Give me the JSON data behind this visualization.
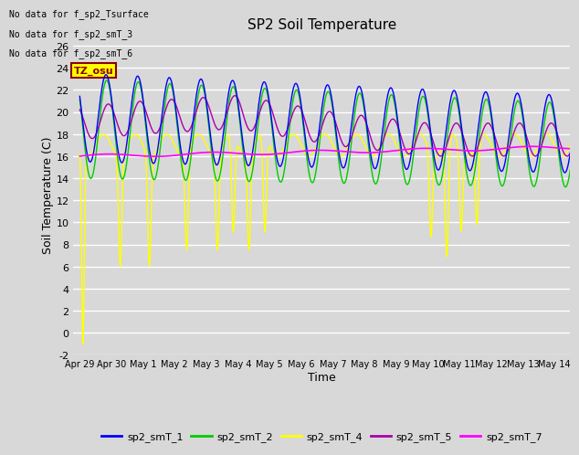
{
  "title": "SP2 Soil Temperature",
  "xlabel": "Time",
  "ylabel": "Soil Temperature (C)",
  "ylim": [
    -2,
    27
  ],
  "yticks": [
    -2,
    0,
    2,
    4,
    6,
    8,
    10,
    12,
    14,
    16,
    18,
    20,
    22,
    24,
    26
  ],
  "background_color": "#d8d8d8",
  "no_data_texts": [
    "No data for f_sp2_Tsurface",
    "No data for f_sp2_smT_3",
    "No data for f_sp2_smT_6"
  ],
  "tz_label": "TZ_osu",
  "x_tick_days": [
    0,
    1,
    2,
    3,
    4,
    5,
    6,
    7,
    8,
    9,
    10,
    11,
    12,
    13,
    14,
    15
  ],
  "x_tick_labels": [
    "Apr 29",
    "Apr 30",
    "May 1",
    "May 2",
    "May 3",
    "May 4",
    "May 5",
    "May 6",
    "May 7",
    "May 8",
    "May 9",
    "May 10",
    "May 11",
    "May 12",
    "May 13",
    "May 14"
  ],
  "colors": {
    "sp2_smT_1": "#0000ff",
    "sp2_smT_2": "#00cc00",
    "sp2_smT_4": "#ffff00",
    "sp2_smT_5": "#aa00aa",
    "sp2_smT_7": "#ff00ff"
  },
  "legend_entries": [
    "sp2_smT_1",
    "sp2_smT_2",
    "sp2_smT_4",
    "sp2_smT_5",
    "sp2_smT_7"
  ],
  "legend_colors": [
    "#0000ff",
    "#00cc00",
    "#ffff00",
    "#aa00aa",
    "#ff00ff"
  ]
}
